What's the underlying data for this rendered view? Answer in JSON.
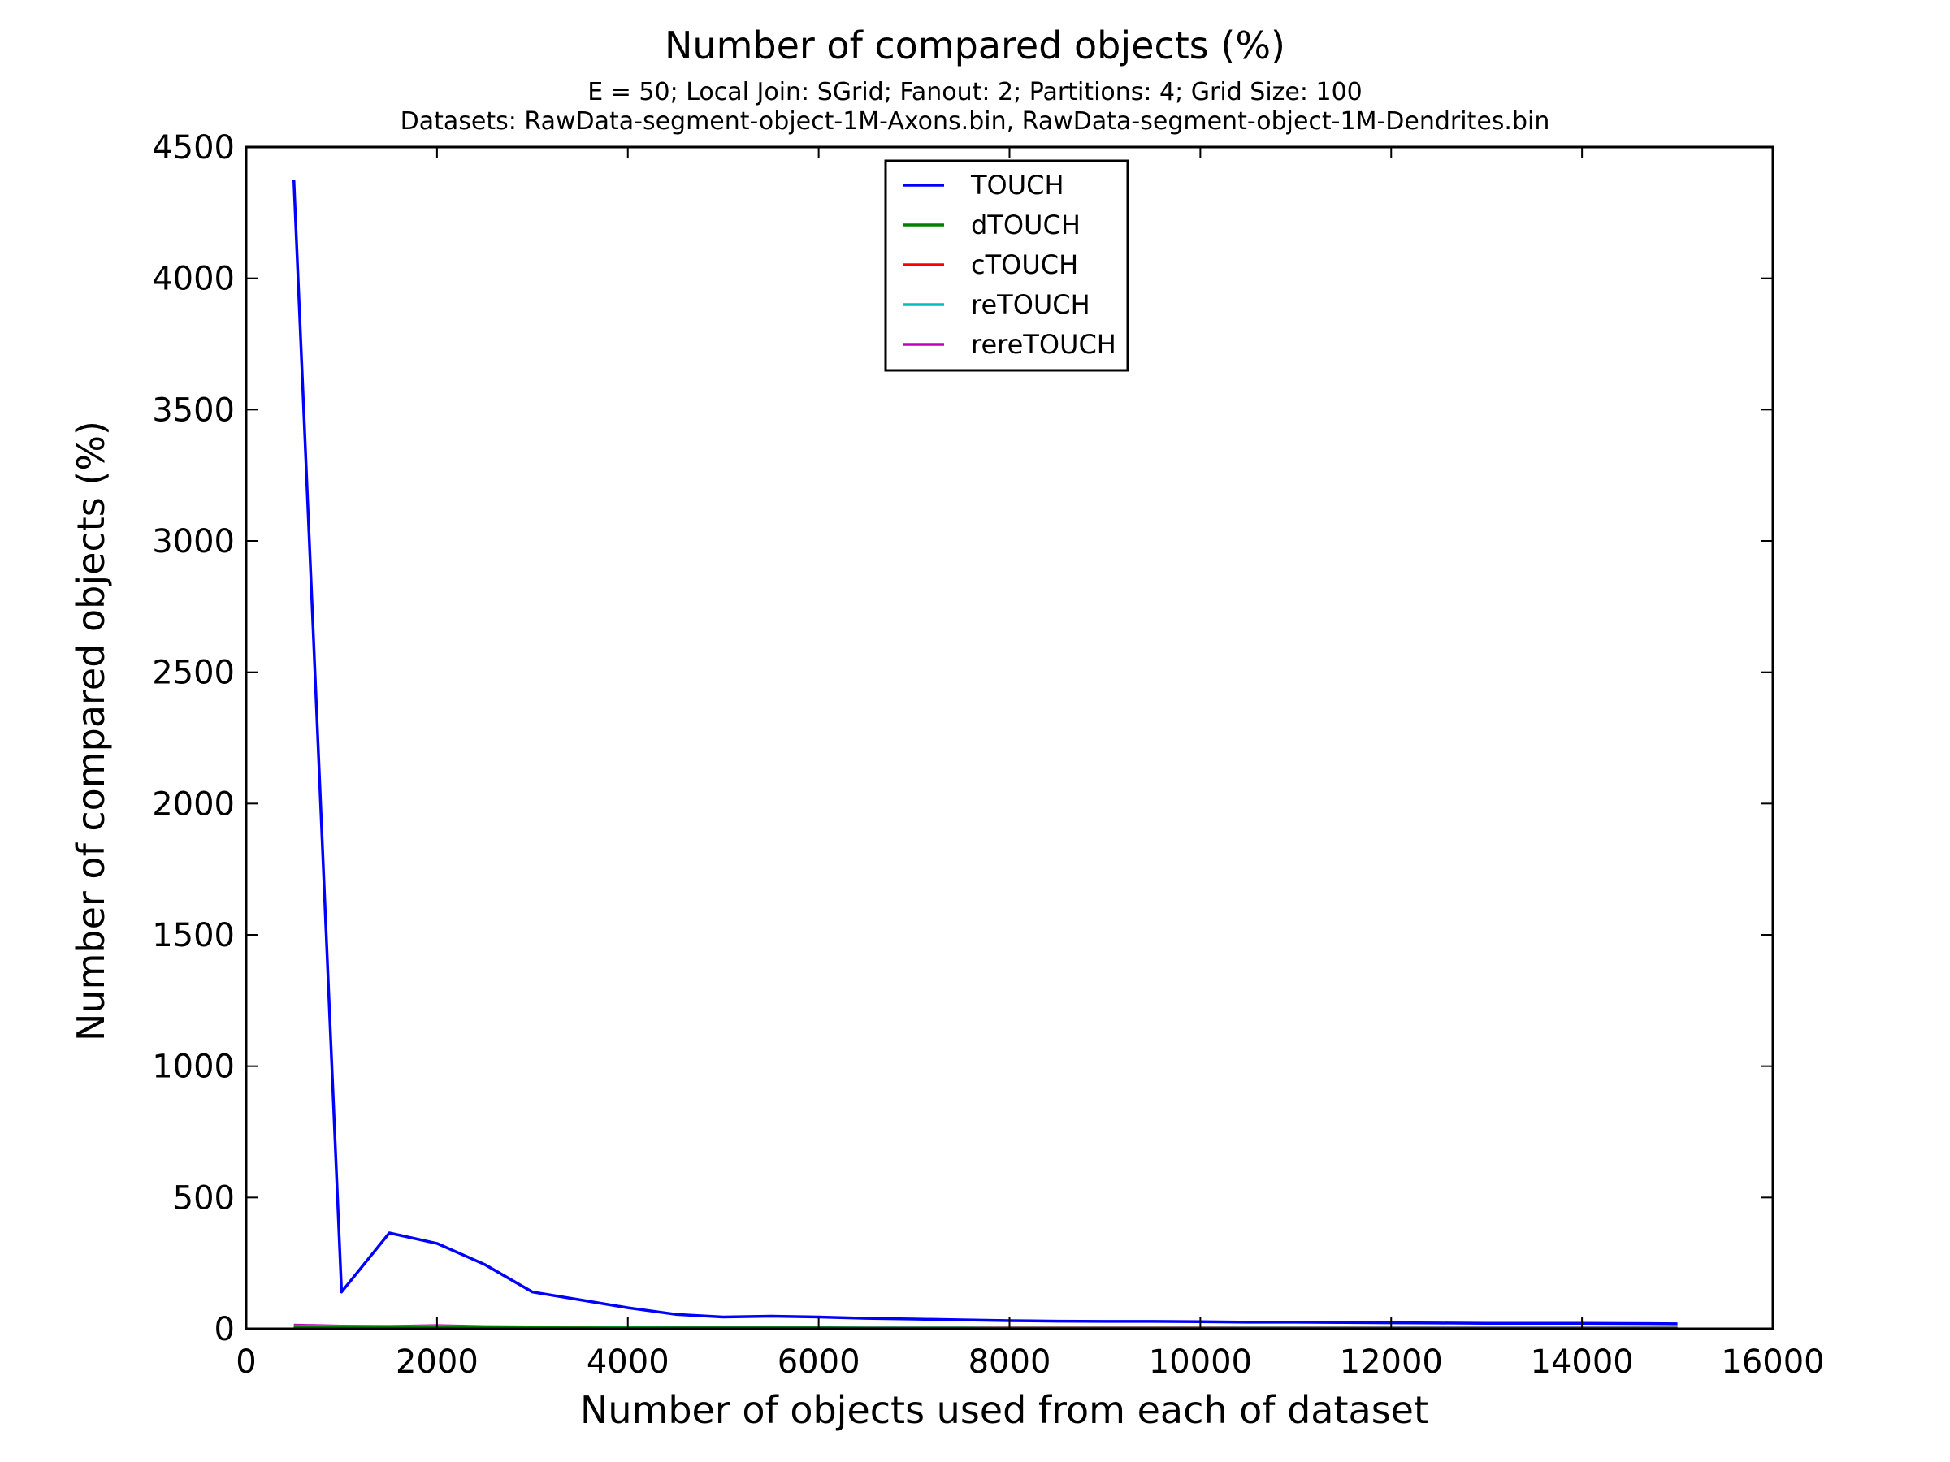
{
  "chart_data": {
    "type": "line",
    "title": "Number of compared objects (%)",
    "subtitle_lines": [
      "E = 50; Local Join: SGrid; Fanout: 2; Partitions: 4; Grid Size: 100",
      "Datasets: RawData-segment-object-1M-Axons.bin, RawData-segment-object-1M-Dendrites.bin"
    ],
    "xlabel": "Number of objects used from each of dataset",
    "ylabel": "Number of compared objects (%)",
    "xlim": [
      0,
      16000
    ],
    "ylim": [
      0,
      4500
    ],
    "x_ticks": [
      0,
      2000,
      4000,
      6000,
      8000,
      10000,
      12000,
      14000,
      16000
    ],
    "y_ticks": [
      0,
      500,
      1000,
      1500,
      2000,
      2500,
      3000,
      3500,
      4000,
      4500
    ],
    "x_tick_labels": [
      "0",
      "2000",
      "4000",
      "6000",
      "8000",
      "10000",
      "12000",
      "14000",
      "16000"
    ],
    "y_tick_labels": [
      "0",
      "500",
      "1000",
      "1500",
      "2000",
      "2500",
      "3000",
      "3500",
      "4000",
      "4500"
    ],
    "grid": false,
    "legend_placement": "upper-center",
    "x": [
      500,
      1000,
      1500,
      2000,
      2500,
      3000,
      3500,
      4000,
      4500,
      5000,
      5500,
      6000,
      6500,
      7000,
      7500,
      8000,
      8500,
      9000,
      9500,
      10000,
      10500,
      11000,
      11500,
      12000,
      12500,
      13000,
      13500,
      14000,
      14500,
      15000
    ],
    "series": [
      {
        "name": "TOUCH",
        "color": "#0000ff",
        "values": [
          4375,
          140,
          365,
          325,
          245,
          140,
          110,
          80,
          55,
          45,
          48,
          45,
          40,
          37,
          34,
          31,
          29,
          28,
          28,
          27,
          25,
          25,
          24,
          23,
          22,
          21,
          21,
          21,
          20,
          19
        ]
      },
      {
        "name": "dTOUCH",
        "color": "#008000",
        "values": [
          8,
          6,
          5,
          5,
          4,
          4,
          3,
          3,
          3,
          3,
          3,
          3,
          2,
          2,
          2,
          2,
          2,
          2,
          2,
          2,
          2,
          2,
          2,
          2,
          2,
          2,
          2,
          2,
          2,
          2
        ]
      },
      {
        "name": "cTOUCH",
        "color": "#ff0000",
        "values": [
          6,
          5,
          4,
          4,
          3,
          3,
          3,
          2,
          2,
          2,
          2,
          2,
          2,
          2,
          2,
          2,
          2,
          2,
          2,
          2,
          1,
          1,
          1,
          1,
          1,
          1,
          1,
          1,
          1,
          1
        ]
      },
      {
        "name": "reTOUCH",
        "color": "#00bfbf",
        "values": [
          10,
          8,
          7,
          9,
          6,
          5,
          4,
          4,
          3,
          3,
          3,
          3,
          3,
          3,
          3,
          2,
          2,
          2,
          2,
          2,
          2,
          2,
          2,
          2,
          2,
          2,
          2,
          2,
          2,
          2
        ]
      },
      {
        "name": "rereTOUCH",
        "color": "#bf00bf",
        "values": [
          14,
          10,
          9,
          12,
          8,
          7,
          5,
          5,
          4,
          4,
          4,
          4,
          3,
          3,
          3,
          3,
          3,
          3,
          3,
          3,
          3,
          3,
          3,
          3,
          3,
          3,
          3,
          3,
          3,
          3
        ]
      }
    ]
  }
}
